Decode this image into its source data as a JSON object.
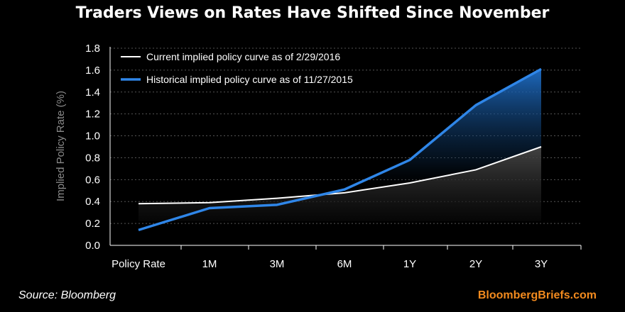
{
  "header": {
    "title": "Traders Views on Rates Have Shifted Since November"
  },
  "footer": {
    "source": "Source: Bloomberg",
    "brand": "BloombergBriefs.com"
  },
  "colors": {
    "current": "#ffffff",
    "historical": "#2f86e8",
    "brand": "#f28a1e"
  },
  "chart_data": {
    "type": "line",
    "ylabel": "Implied Policy Rate (%)",
    "xlabel": "",
    "ylim": [
      0,
      1.8
    ],
    "yticks": [
      "0.0",
      "0.2",
      "0.4",
      "0.6",
      "0.8",
      "1.0",
      "1.2",
      "1.4",
      "1.6",
      "1.8"
    ],
    "grid": true,
    "legend_position": "top-left",
    "categories": [
      "Policy Rate",
      "1M",
      "3M",
      "6M",
      "1Y",
      "2Y",
      "3Y"
    ],
    "series": [
      {
        "name": "Current implied policy curve as of 2/29/2016",
        "color": "#ffffff",
        "values": [
          0.38,
          0.39,
          0.43,
          0.48,
          0.57,
          0.69,
          0.9
        ]
      },
      {
        "name": "Historical implied policy curve as of 11/27/2015",
        "color": "#2f86e8",
        "values": [
          0.14,
          0.34,
          0.37,
          0.51,
          0.78,
          1.28,
          1.61
        ]
      }
    ]
  }
}
